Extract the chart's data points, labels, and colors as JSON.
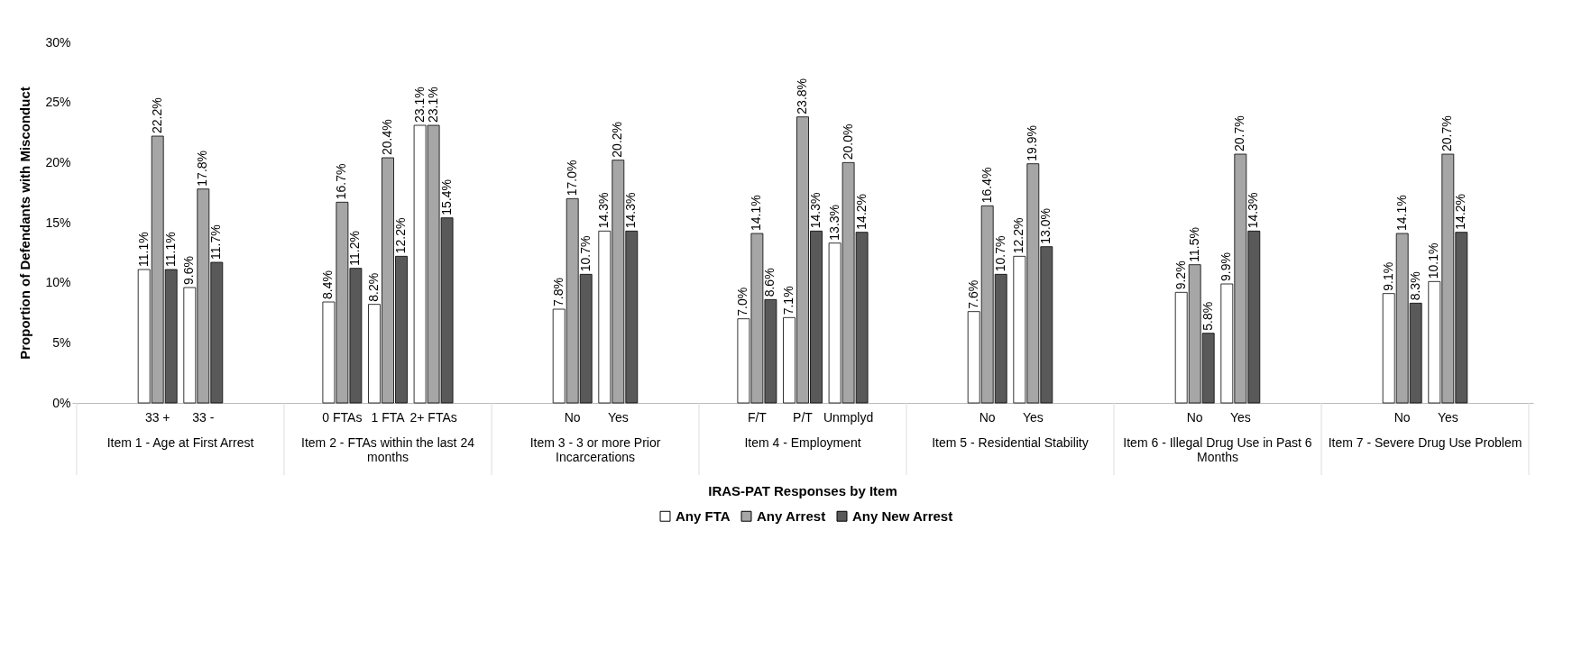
{
  "chart_data": {
    "type": "bar",
    "xlabel": "IRAS-PAT Responses by Item",
    "ylabel": "Proportion of Defendants with Misconduct",
    "categories": [
      "33 +",
      "33 -",
      "0 FTAs",
      "1 FTA",
      "2+ FTAs",
      "No",
      "Yes",
      "F/T",
      "P/T",
      "Unmplyd",
      "No",
      "Yes",
      "No",
      "Yes",
      "No",
      "Yes"
    ],
    "annotations": [
      "Item 1 - Age at First Arrest",
      "Item 2 - FTAs within the last 24 months",
      "Item 3 - 3 or more Prior Incarcerations",
      "Item 4 - Employment",
      "Item 5 - Residential Stability",
      "Item 6 - Illegal Drug Use in Past 6 Months",
      "Item 7 - Severe Drug Use Problem"
    ],
    "series": [
      {
        "name": "Any FTA",
        "color": "#ffffff",
        "values": [
          11.1,
          9.6,
          8.4,
          8.2,
          23.1,
          7.8,
          14.3,
          7.0,
          7.1,
          13.3,
          7.6,
          12.2,
          9.2,
          9.9,
          9.1,
          10.1
        ],
        "value_labels": [
          "11.1%",
          "9.6%",
          "8.4%",
          "8.2%",
          "23.1%",
          "7.8%",
          "14.3%",
          "7.0%",
          "7.1%",
          "13.3%",
          "7.6%",
          "12.2%",
          "9.2%",
          "9.9%",
          "9.1%",
          "10.1%"
        ]
      },
      {
        "name": "Any Arrest",
        "color": "#a6a6a6",
        "values": [
          22.2,
          17.8,
          16.7,
          20.4,
          23.1,
          17.0,
          20.2,
          14.1,
          23.8,
          20.0,
          16.4,
          19.9,
          11.5,
          20.7,
          14.1,
          20.7
        ],
        "value_labels": [
          "22.2%",
          "17.8%",
          "16.7%",
          "20.4%",
          "23.1%",
          "17.0%",
          "20.2%",
          "14.1%",
          "23.8%",
          "20.0%",
          "16.4%",
          "19.9%",
          "11.5%",
          "20.7%",
          "14.1%",
          "20.7%"
        ]
      },
      {
        "name": "Any New Arrest",
        "color": "#595959",
        "values": [
          11.1,
          11.7,
          11.2,
          12.2,
          15.4,
          10.7,
          14.3,
          8.6,
          14.3,
          14.2,
          10.7,
          13.0,
          5.8,
          14.3,
          8.3,
          14.2
        ],
        "value_labels": [
          "11.1%",
          "11.7%",
          "11.2%",
          "12.2%",
          "15.4%",
          "10.7%",
          "14.3%",
          "8.6%",
          "14.3%",
          "14.2%",
          "10.7%",
          "13.0%",
          "5.8%",
          "14.3%",
          "8.3%",
          "14.2%"
        ]
      }
    ],
    "ylim": [
      0,
      30
    ],
    "yticks": [
      {
        "value": 0,
        "label": "0%"
      },
      {
        "value": 5,
        "label": "5%"
      },
      {
        "value": 10,
        "label": "10%"
      },
      {
        "value": 15,
        "label": "15%"
      },
      {
        "value": 20,
        "label": "20%"
      },
      {
        "value": 25,
        "label": "25%"
      },
      {
        "value": 30,
        "label": "30%"
      }
    ],
    "grid": false,
    "legend": "bottom"
  }
}
